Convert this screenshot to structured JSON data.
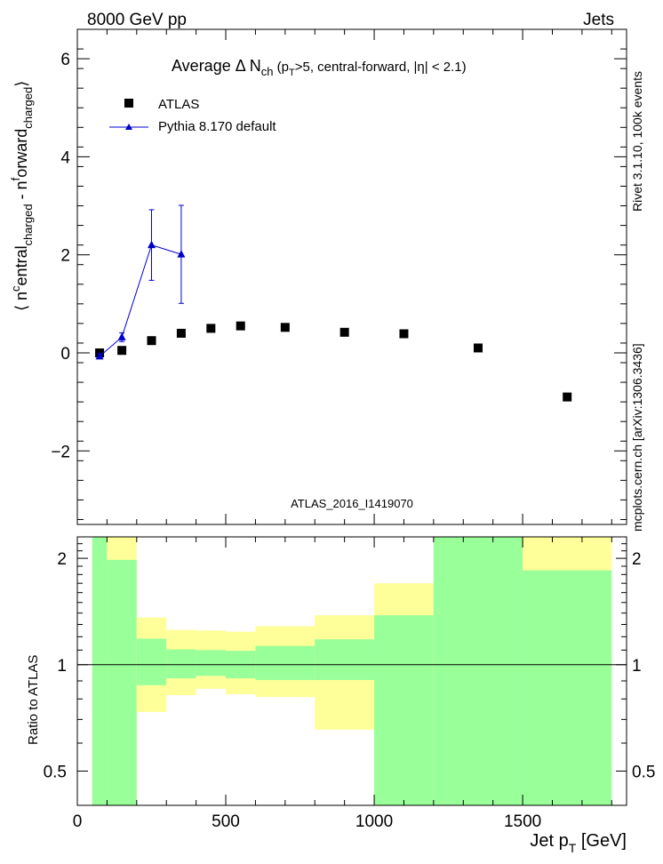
{
  "header": {
    "left": "8000 GeV pp",
    "right": "Jets"
  },
  "side_labels": {
    "rivet": "Rivet 3.1.10,  100k events",
    "mcplots": "mcplots.cern.ch [arXiv:1306.3436]"
  },
  "chart_data": [
    {
      "type": "scatter",
      "title_parts": {
        "a": "Average ",
        "delta": "Δ",
        "n": " N",
        "n_sub": "ch",
        "paren_open": " (p",
        "pt_sub": "T",
        "rest": ">5, central-forward, |η| < 2.1)"
      },
      "ylabel_parts": {
        "bracket": "⟨ n",
        "sup1": "c",
        "mid1": "entral",
        "sub1": "charged",
        "mid2": " - n",
        "sup2": "f",
        "mid3": "orward",
        "sub2": "charged",
        "close": "⟩"
      },
      "watermark": "ATLAS_2016_I1419070",
      "xlim": [
        0,
        1850
      ],
      "ylim": [
        -3.5,
        6.6
      ],
      "y_ticks": [
        -2,
        0,
        2,
        4,
        6
      ],
      "y_tick_labels": [
        "−2",
        "0",
        "2",
        "4",
        "6"
      ],
      "x_ticks": [
        0,
        500,
        1000,
        1500
      ],
      "legend_position": "top-left",
      "series": [
        {
          "name": "ATLAS",
          "marker": "square",
          "color": "#000000",
          "x": [
            75,
            150,
            250,
            350,
            450,
            550,
            700,
            900,
            1100,
            1350,
            1650
          ],
          "y": [
            0.0,
            0.05,
            0.25,
            0.4,
            0.5,
            0.55,
            0.52,
            0.42,
            0.39,
            0.1,
            -0.9
          ]
        },
        {
          "name": "Pythia 8.170 default",
          "marker": "triangle",
          "color": "#0000cc",
          "x": [
            75,
            150,
            250,
            350
          ],
          "y": [
            -0.07,
            0.32,
            2.2,
            2.01
          ],
          "yerr_low": [
            0.05,
            0.09,
            0.72,
            1.0
          ],
          "yerr_high": [
            0.05,
            0.09,
            0.72,
            1.0
          ]
        }
      ]
    },
    {
      "type": "area",
      "ylabel": "Ratio to ATLAS",
      "xlabel_parts": {
        "main": "Jet p",
        "sub": "T",
        "unit": " [GeV]"
      },
      "scale": "log",
      "xlim": [
        0,
        1850
      ],
      "ylim": [
        0.4,
        2.3
      ],
      "y_ticks": [
        0.5,
        1,
        2
      ],
      "y_tick_labels": [
        "0.5",
        "1",
        "2"
      ],
      "x_ticks": [
        0,
        500,
        1000,
        1500
      ],
      "x_tick_labels": [
        "0",
        "500",
        "1000",
        "1500"
      ],
      "colors": {
        "stat": "#99ff99",
        "syst": "#ffff99"
      },
      "bins": [
        {
          "x0": 50,
          "x1": 100,
          "stat_lo": 0.4,
          "stat_hi": 2.3,
          "tot_lo": 0.4,
          "tot_hi": 2.3
        },
        {
          "x0": 100,
          "x1": 200,
          "stat_lo": 0.4,
          "stat_hi": 1.98,
          "tot_lo": 0.4,
          "tot_hi": 2.3
        },
        {
          "x0": 200,
          "x1": 300,
          "stat_lo": 0.875,
          "stat_hi": 1.185,
          "tot_lo": 0.735,
          "tot_hi": 1.36
        },
        {
          "x0": 300,
          "x1": 400,
          "stat_lo": 0.915,
          "stat_hi": 1.105,
          "tot_lo": 0.82,
          "tot_hi": 1.255
        },
        {
          "x0": 400,
          "x1": 500,
          "stat_lo": 0.93,
          "stat_hi": 1.1,
          "tot_lo": 0.855,
          "tot_hi": 1.25
        },
        {
          "x0": 500,
          "x1": 600,
          "stat_lo": 0.915,
          "stat_hi": 1.095,
          "tot_lo": 0.825,
          "tot_hi": 1.24
        },
        {
          "x0": 600,
          "x1": 800,
          "stat_lo": 0.905,
          "stat_hi": 1.13,
          "tot_lo": 0.81,
          "tot_hi": 1.285
        },
        {
          "x0": 800,
          "x1": 1000,
          "stat_lo": 0.905,
          "stat_hi": 1.18,
          "tot_lo": 0.655,
          "tot_hi": 1.38
        },
        {
          "x0": 1000,
          "x1": 1200,
          "stat_lo": 0.4,
          "stat_hi": 1.38,
          "tot_lo": 0.4,
          "tot_hi": 1.7
        },
        {
          "x0": 1200,
          "x1": 1500,
          "stat_lo": 0.4,
          "stat_hi": 2.3,
          "tot_lo": 0.4,
          "tot_hi": 2.3
        },
        {
          "x0": 1500,
          "x1": 1800,
          "stat_lo": 0.4,
          "stat_hi": 1.85,
          "tot_lo": 0.4,
          "tot_hi": 2.3
        }
      ]
    }
  ]
}
